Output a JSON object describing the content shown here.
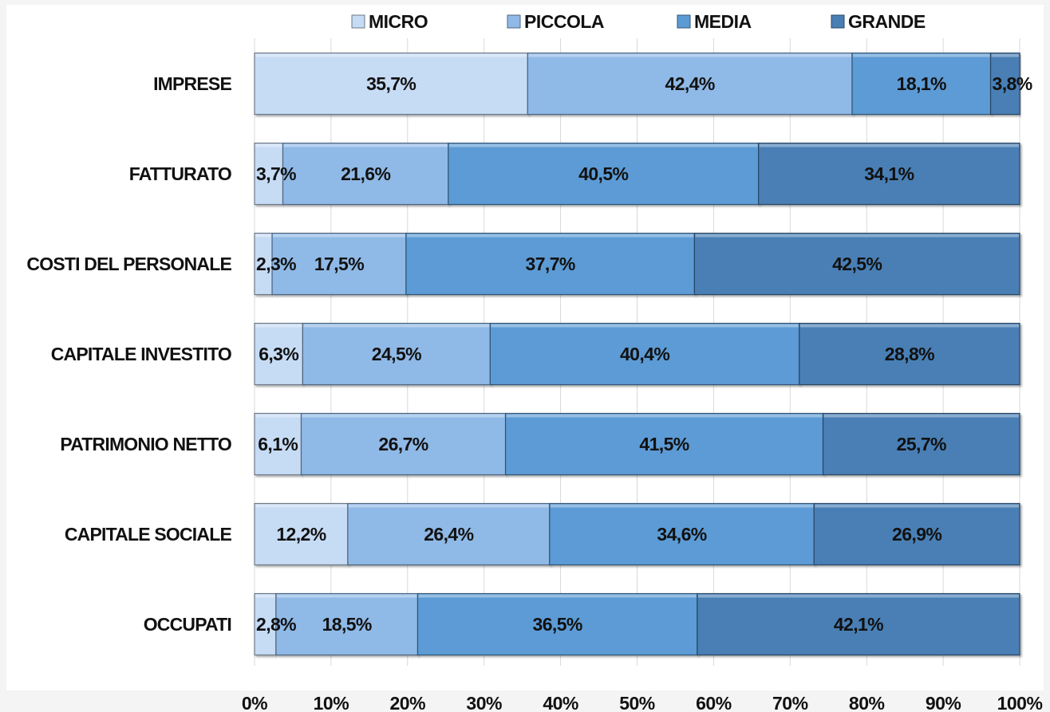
{
  "chart_data": {
    "type": "bar",
    "orientation": "horizontal",
    "stacked": "100%",
    "categories": [
      "IMPRESE",
      "FATTURATO",
      "COSTI DEL PERSONALE",
      "CAPITALE INVESTITO",
      "PATRIMONIO NETTO",
      "CAPITALE SOCIALE",
      "OCCUPATI"
    ],
    "series": [
      {
        "name": "MICRO",
        "color": "#c6dbf4",
        "values": [
          35.7,
          3.7,
          2.3,
          6.3,
          6.1,
          12.2,
          2.8
        ],
        "labels": [
          "35,7%",
          "3,7%",
          "2,3%",
          "6,3%",
          "6,1%",
          "12,2%",
          "2,8%"
        ]
      },
      {
        "name": "PICCOLA",
        "color": "#8fb9e6",
        "values": [
          42.4,
          21.6,
          17.5,
          24.5,
          26.7,
          26.4,
          18.5
        ],
        "labels": [
          "42,4%",
          "21,6%",
          "17,5%",
          "24,5%",
          "26,7%",
          "26,4%",
          "18,5%"
        ]
      },
      {
        "name": "MEDIA",
        "color": "#5b9bd5",
        "values": [
          18.1,
          40.5,
          37.7,
          40.4,
          41.5,
          34.6,
          36.5
        ],
        "labels": [
          "18,1%",
          "40,5%",
          "37,7%",
          "40,4%",
          "41,5%",
          "34,6%",
          "36,5%"
        ]
      },
      {
        "name": "GRANDE",
        "color": "#4a7fb5",
        "values": [
          3.8,
          34.1,
          42.5,
          28.8,
          25.7,
          26.9,
          42.1
        ],
        "labels": [
          "3,8%",
          "34,1%",
          "42,5%",
          "28,8%",
          "25,7%",
          "26,9%",
          "42,1%"
        ]
      }
    ],
    "xlim": [
      0,
      100
    ],
    "x_ticks": [
      "0%",
      "10%",
      "20%",
      "30%",
      "40%",
      "50%",
      "60%",
      "70%",
      "80%",
      "90%",
      "100%"
    ],
    "grid": true,
    "legend_position": "top"
  }
}
